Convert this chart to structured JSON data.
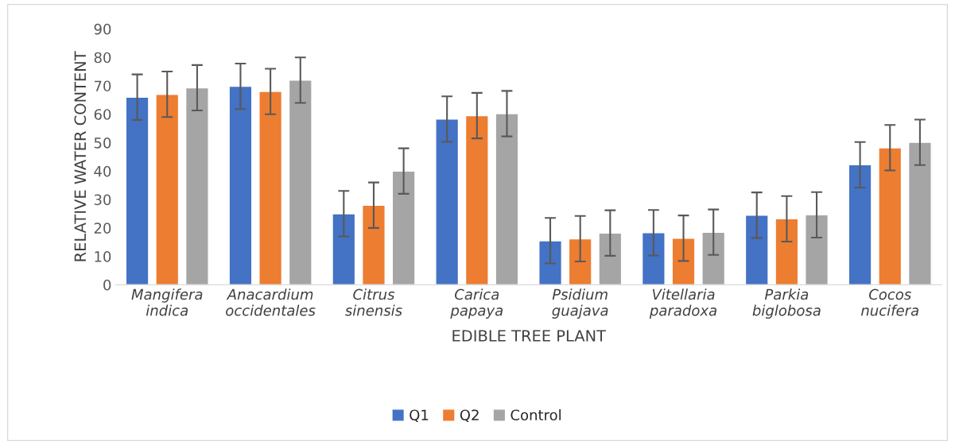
{
  "chart_data": {
    "type": "bar",
    "xlabel": "EDIBLE TREE PLANT",
    "ylabel": "RELATIVE WATER CONTENT",
    "categories": [
      "Mangifera\nindica",
      "Anacardium\noccidentales",
      "Citrus\nsinensis",
      "Carica\npapaya",
      "Psidium\nguajava",
      "Vitellaria\nparadoxa",
      "Parkia\nbiglobosa",
      "Cocos\nnucifera"
    ],
    "series": [
      {
        "name": "Q1",
        "color": "#4472c4",
        "values": [
          66,
          69.8,
          25,
          58.3,
          15.5,
          18.3,
          24.5,
          42.2
        ],
        "errors": [
          8,
          8,
          8,
          8,
          8,
          8,
          8,
          8
        ]
      },
      {
        "name": "Q2",
        "color": "#ed7d31",
        "values": [
          67,
          68,
          28,
          59.5,
          16.2,
          16.4,
          23.2,
          48.2
        ],
        "errors": [
          8,
          8,
          8,
          8,
          8,
          8,
          8,
          8
        ]
      },
      {
        "name": "Control",
        "color": "#a5a5a5",
        "values": [
          69.3,
          72,
          40,
          60.2,
          18.2,
          18.5,
          24.6,
          50.1
        ],
        "errors": [
          8,
          8,
          8,
          8,
          8,
          8,
          8,
          8
        ]
      }
    ],
    "ylim": [
      0,
      90
    ],
    "yticks": [
      0,
      10,
      20,
      30,
      40,
      50,
      60,
      70,
      80,
      90
    ],
    "grid": false,
    "legend": "bottom"
  }
}
